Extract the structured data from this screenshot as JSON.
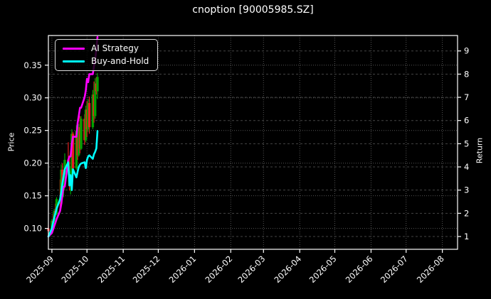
{
  "title": "cnoption [90005985.SZ]",
  "legend": {
    "items": [
      {
        "label": "AI Strategy",
        "color": "#ff00ff"
      },
      {
        "label": "Buy-and-Hold",
        "color": "#00ffff"
      }
    ]
  },
  "axes": {
    "left": {
      "label": "Price",
      "ticks": [
        0.1,
        0.15,
        0.2,
        0.25,
        0.3,
        0.35
      ]
    },
    "right": {
      "label": "Return",
      "ticks": [
        1,
        2,
        3,
        4,
        5,
        6,
        7,
        8,
        9
      ]
    },
    "x": {
      "ticks": [
        {
          "date": "2025-09-01",
          "label": "2025-09"
        },
        {
          "date": "2025-10-01",
          "label": "2025-10"
        },
        {
          "date": "2025-11-01",
          "label": "2025-11"
        },
        {
          "date": "2025-12-01",
          "label": "2025-12"
        },
        {
          "date": "2026-01-01",
          "label": "2026-01"
        },
        {
          "date": "2026-02-01",
          "label": "2026-02"
        },
        {
          "date": "2026-03-01",
          "label": "2026-03"
        },
        {
          "date": "2026-04-01",
          "label": "2026-04"
        },
        {
          "date": "2026-05-01",
          "label": "2026-05"
        },
        {
          "date": "2026-06-01",
          "label": "2026-06"
        },
        {
          "date": "2026-07-01",
          "label": "2026-07"
        },
        {
          "date": "2026-08-01",
          "label": "2026-08"
        }
      ]
    }
  },
  "colors": {
    "background": "#000000",
    "foreground": "#ffffff",
    "grid": "#555555",
    "spine": "#ffffff",
    "candle_up": "#00a000",
    "candle_down": "#e62020",
    "ai_strategy": "#ff00ff",
    "buy_and_hold": "#00ffff"
  },
  "chart_data": {
    "type": "candlestick+line",
    "title": "cnoption [90005985.SZ]",
    "xlabel": "",
    "ylabel_left": "Price",
    "ylabel_right": "Return",
    "grid": true,
    "legend_position": "upper-left",
    "x_range": [
      "2025-08-29",
      "2026-08-14"
    ],
    "price_range": [
      0.0681,
      0.3954
    ],
    "return_range": [
      0.449,
      9.665
    ],
    "x_dates": [
      "2025-08-29",
      "2025-09-01",
      "2025-09-02",
      "2025-09-03",
      "2025-09-04",
      "2025-09-05",
      "2025-09-08",
      "2025-09-09",
      "2025-09-10",
      "2025-09-11",
      "2025-09-12",
      "2025-09-15",
      "2025-09-16",
      "2025-09-17",
      "2025-09-18",
      "2025-09-19",
      "2025-09-22",
      "2025-09-23",
      "2025-09-24",
      "2025-09-25",
      "2025-09-26",
      "2025-09-29",
      "2025-09-30",
      "2025-10-01",
      "2025-10-02",
      "2025-10-03",
      "2025-10-06",
      "2025-10-07",
      "2025-10-08",
      "2025-10-09",
      "2025-10-10"
    ],
    "series": [
      {
        "name": "AI Strategy",
        "axis": "right",
        "color": "#ff00ff",
        "values": [
          1.0,
          1.15,
          1.3,
          1.45,
          1.6,
          1.75,
          2.1,
          2.4,
          2.8,
          3.15,
          3.15,
          4.3,
          4.45,
          4.45,
          5.0,
          5.3,
          5.3,
          5.9,
          6.2,
          6.55,
          6.55,
          7.0,
          7.3,
          7.8,
          7.65,
          8.0,
          8.0,
          8.35,
          8.6,
          9.1,
          9.6
        ]
      },
      {
        "name": "Buy-and-Hold",
        "axis": "right",
        "color": "#00ffff",
        "values": [
          1.0,
          1.35,
          1.6,
          1.8,
          2.0,
          2.2,
          2.6,
          2.9,
          3.3,
          3.6,
          3.9,
          4.2,
          3.2,
          3.65,
          3.0,
          3.9,
          3.55,
          3.8,
          4.0,
          4.1,
          4.15,
          4.2,
          3.95,
          4.3,
          4.45,
          4.5,
          4.35,
          4.55,
          4.65,
          4.8,
          5.55
        ]
      }
    ],
    "candles": {
      "axis": "left",
      "ohlc": [
        {
          "o": 0.1,
          "h": 0.105,
          "l": 0.093,
          "c": 0.096
        },
        {
          "o": 0.096,
          "h": 0.115,
          "l": 0.095,
          "c": 0.112
        },
        {
          "o": 0.112,
          "h": 0.122,
          "l": 0.105,
          "c": 0.108
        },
        {
          "o": 0.108,
          "h": 0.13,
          "l": 0.106,
          "c": 0.127
        },
        {
          "o": 0.127,
          "h": 0.138,
          "l": 0.118,
          "c": 0.122
        },
        {
          "o": 0.122,
          "h": 0.148,
          "l": 0.12,
          "c": 0.145
        },
        {
          "o": 0.145,
          "h": 0.175,
          "l": 0.13,
          "c": 0.138
        },
        {
          "o": 0.138,
          "h": 0.198,
          "l": 0.136,
          "c": 0.19
        },
        {
          "o": 0.19,
          "h": 0.2,
          "l": 0.152,
          "c": 0.158
        },
        {
          "o": 0.158,
          "h": 0.188,
          "l": 0.148,
          "c": 0.182
        },
        {
          "o": 0.182,
          "h": 0.215,
          "l": 0.165,
          "c": 0.205
        },
        {
          "o": 0.205,
          "h": 0.232,
          "l": 0.182,
          "c": 0.188
        },
        {
          "o": 0.188,
          "h": 0.21,
          "l": 0.158,
          "c": 0.165
        },
        {
          "o": 0.165,
          "h": 0.195,
          "l": 0.152,
          "c": 0.188
        },
        {
          "o": 0.188,
          "h": 0.252,
          "l": 0.185,
          "c": 0.245
        },
        {
          "o": 0.245,
          "h": 0.248,
          "l": 0.185,
          "c": 0.192
        },
        {
          "o": 0.192,
          "h": 0.258,
          "l": 0.19,
          "c": 0.25
        },
        {
          "o": 0.25,
          "h": 0.255,
          "l": 0.205,
          "c": 0.212
        },
        {
          "o": 0.212,
          "h": 0.26,
          "l": 0.21,
          "c": 0.255
        },
        {
          "o": 0.255,
          "h": 0.272,
          "l": 0.215,
          "c": 0.222
        },
        {
          "o": 0.222,
          "h": 0.272,
          "l": 0.22,
          "c": 0.268
        },
        {
          "o": 0.268,
          "h": 0.275,
          "l": 0.228,
          "c": 0.235
        },
        {
          "o": 0.235,
          "h": 0.288,
          "l": 0.232,
          "c": 0.282
        },
        {
          "o": 0.282,
          "h": 0.295,
          "l": 0.24,
          "c": 0.252
        },
        {
          "o": 0.252,
          "h": 0.298,
          "l": 0.248,
          "c": 0.292
        },
        {
          "o": 0.292,
          "h": 0.302,
          "l": 0.245,
          "c": 0.255
        },
        {
          "o": 0.255,
          "h": 0.312,
          "l": 0.252,
          "c": 0.305
        },
        {
          "o": 0.305,
          "h": 0.325,
          "l": 0.262,
          "c": 0.272
        },
        {
          "o": 0.272,
          "h": 0.33,
          "l": 0.268,
          "c": 0.322
        },
        {
          "o": 0.322,
          "h": 0.332,
          "l": 0.305,
          "c": 0.31
        },
        {
          "o": 0.31,
          "h": 0.338,
          "l": 0.298,
          "c": 0.332
        }
      ]
    }
  }
}
